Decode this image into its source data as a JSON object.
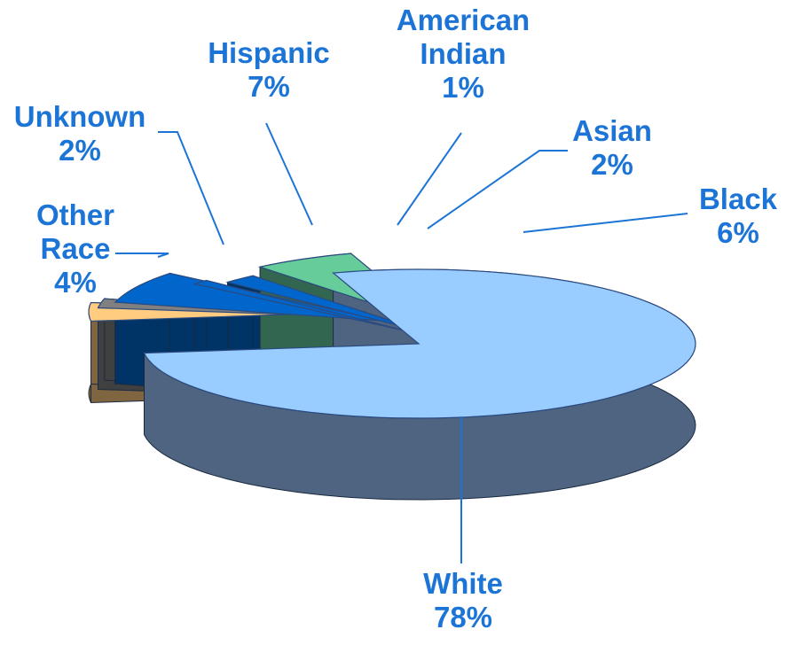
{
  "chart_data": {
    "type": "pie",
    "style": "3d-exploded",
    "title": "",
    "slices": [
      {
        "label": "White",
        "value": 78,
        "value_label": "78%",
        "color": "#99CCFF",
        "side_color": "#4F6480"
      },
      {
        "label": "Other Race",
        "value": 4,
        "value_label": "4%",
        "color": "#FFCC80",
        "side_color": "#806640"
      },
      {
        "label": "Unknown",
        "value": 2,
        "value_label": "2%",
        "color": "#808080",
        "side_color": "#404040"
      },
      {
        "label": "Hispanic",
        "value": 7,
        "value_label": "7%",
        "color": "#0066CC",
        "side_color": "#003366"
      },
      {
        "label": "American Indian",
        "value": 1,
        "value_label": "1%",
        "color": "#0066CC",
        "side_color": "#003366"
      },
      {
        "label": "Asian",
        "value": 2,
        "value_label": "2%",
        "color": "#0066CC",
        "side_color": "#003366"
      },
      {
        "label": "Black",
        "value": 6,
        "value_label": "6%",
        "color": "#66CC99",
        "side_color": "#336650"
      }
    ],
    "label_color": "#1C75D6",
    "leader_color": "#1C75D6"
  }
}
